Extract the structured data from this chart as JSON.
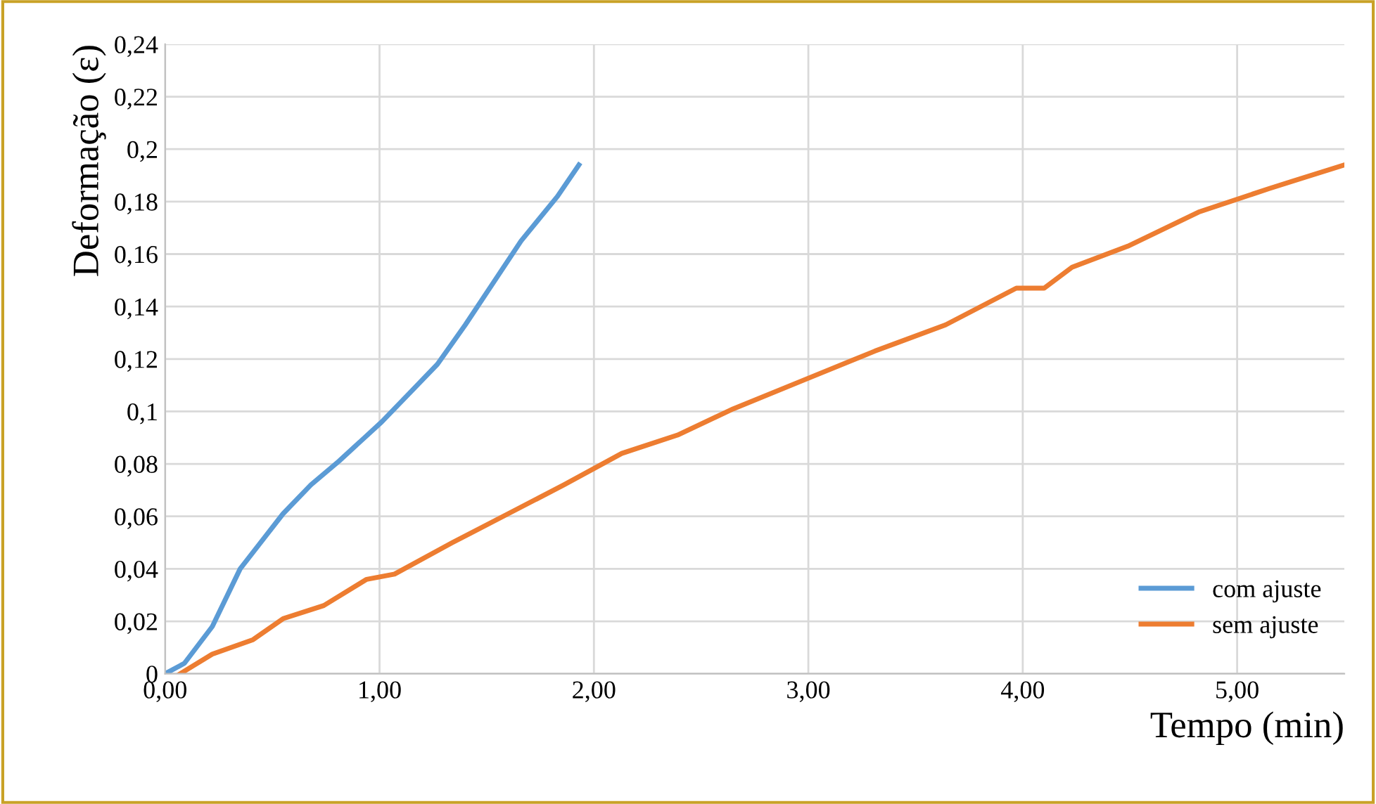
{
  "chart_data": {
    "type": "line",
    "xlabel": "Tempo (min)",
    "ylabel": "Deformação (ε)",
    "xlim": [
      0,
      5.5
    ],
    "ylim": [
      0,
      0.24
    ],
    "xticks": [
      {
        "value": 0,
        "label": "0,00"
      },
      {
        "value": 1,
        "label": "1,00"
      },
      {
        "value": 2,
        "label": "2,00"
      },
      {
        "value": 3,
        "label": "3,00"
      },
      {
        "value": 4,
        "label": "4,00"
      },
      {
        "value": 5,
        "label": "5,00"
      }
    ],
    "yticks": [
      {
        "value": 0,
        "label": "0"
      },
      {
        "value": 0.02,
        "label": "0,02"
      },
      {
        "value": 0.04,
        "label": "0,04"
      },
      {
        "value": 0.06,
        "label": "0,06"
      },
      {
        "value": 0.08,
        "label": "0,08"
      },
      {
        "value": 0.1,
        "label": "0,1"
      },
      {
        "value": 0.12,
        "label": "0,12"
      },
      {
        "value": 0.14,
        "label": "0,14"
      },
      {
        "value": 0.16,
        "label": "0,16"
      },
      {
        "value": 0.18,
        "label": "0,18"
      },
      {
        "value": 0.2,
        "label": "0,2"
      },
      {
        "value": 0.22,
        "label": "0,22"
      },
      {
        "value": 0.24,
        "label": "0,24"
      }
    ],
    "grid": true,
    "legend": "bottom right",
    "marker": "none",
    "line_style": "solid",
    "series": [
      {
        "name": "com ajuste",
        "color": "#5b9bd5",
        "x": [
          0,
          0.09,
          0.22,
          0.35,
          0.55,
          0.68,
          0.81,
          1.01,
          1.14,
          1.27,
          1.4,
          1.53,
          1.66,
          1.83,
          1.93
        ],
        "values": [
          0,
          0.004,
          0.018,
          0.04,
          0.061,
          0.072,
          0.081,
          0.096,
          0.107,
          0.118,
          0.133,
          0.149,
          0.165,
          0.182,
          0.194
        ]
      },
      {
        "name": "sem ajuste",
        "color": "#ed7d31",
        "x": [
          0.07,
          0.22,
          0.41,
          0.55,
          0.74,
          0.94,
          1.07,
          1.34,
          1.6,
          1.86,
          2.13,
          2.39,
          2.65,
          2.98,
          3.31,
          3.64,
          3.97,
          4.1,
          4.23,
          4.49,
          4.82,
          5.15,
          5.5
        ],
        "values": [
          0,
          0.0075,
          0.013,
          0.021,
          0.026,
          0.036,
          0.038,
          0.05,
          0.061,
          0.072,
          0.084,
          0.091,
          0.101,
          0.112,
          0.123,
          0.133,
          0.147,
          0.147,
          0.155,
          0.163,
          0.176,
          0.185,
          0.194
        ]
      }
    ]
  }
}
